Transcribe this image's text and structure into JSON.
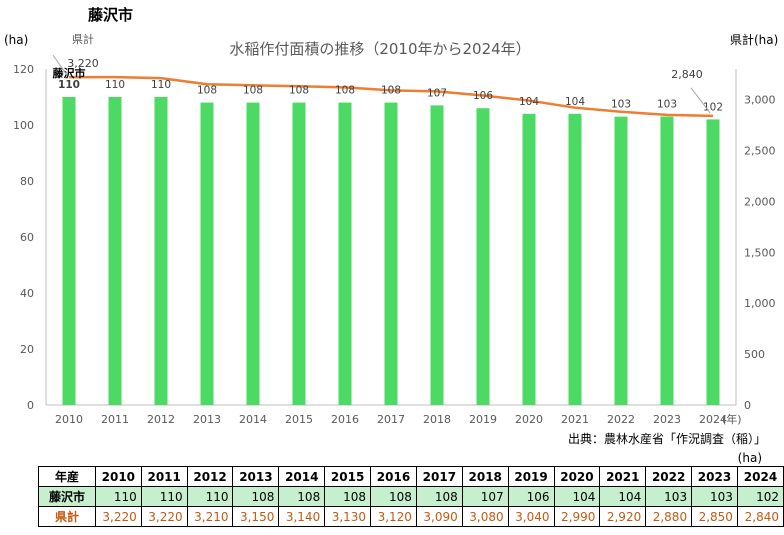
{
  "page_title": "藤沢市",
  "source": "出典：農林水産省「作況調査（稲）」",
  "table_unit": "(ha)",
  "table": {
    "header_label": "年産",
    "row1_label": "藤沢市",
    "row2_label": "県計"
  },
  "chart_data": {
    "type": "bar+line",
    "title": "水稲作付面積の推移（2010年から2024年）",
    "y_left_label": "(ha)",
    "y_right_label": "県計(ha)",
    "x_unit": "(年)",
    "categories": [
      "2010",
      "2011",
      "2012",
      "2013",
      "2014",
      "2015",
      "2016",
      "2017",
      "2018",
      "2019",
      "2020",
      "2021",
      "2022",
      "2023",
      "2024"
    ],
    "ylim_left": [
      0,
      120
    ],
    "yticks_left": [
      0,
      20,
      40,
      60,
      80,
      100,
      120
    ],
    "ylim_right": [
      0,
      3300
    ],
    "yticks_right": [
      0,
      500,
      1000,
      1500,
      2000,
      2500,
      3000
    ],
    "yticks_right_labels": [
      "0",
      "500",
      "1,000",
      "1,500",
      "2,000",
      "2,500",
      "3,000"
    ],
    "series": [
      {
        "name": "藤沢市",
        "type": "bar",
        "axis": "left",
        "color": "#4cd964",
        "values": [
          110,
          110,
          110,
          108,
          108,
          108,
          108,
          108,
          107,
          106,
          104,
          104,
          103,
          103,
          102
        ],
        "labels": [
          "110",
          "110",
          "110",
          "108",
          "108",
          "108",
          "108",
          "108",
          "107",
          "106",
          "104",
          "104",
          "103",
          "103",
          "102"
        ]
      },
      {
        "name": "県計",
        "type": "line",
        "axis": "right",
        "color": "#ed7d31",
        "values": [
          3220,
          3220,
          3210,
          3150,
          3140,
          3130,
          3120,
          3090,
          3080,
          3040,
          2990,
          2920,
          2880,
          2850,
          2840
        ],
        "labels": [
          "3,220",
          "3,220",
          "3,210",
          "3,150",
          "3,140",
          "3,130",
          "3,120",
          "3,090",
          "3,080",
          "3,040",
          "2,990",
          "2,920",
          "2,880",
          "2,850",
          "2,840"
        ]
      }
    ],
    "annotations": {
      "line_first_label": "3,220",
      "line_last_label": "2,840"
    }
  }
}
